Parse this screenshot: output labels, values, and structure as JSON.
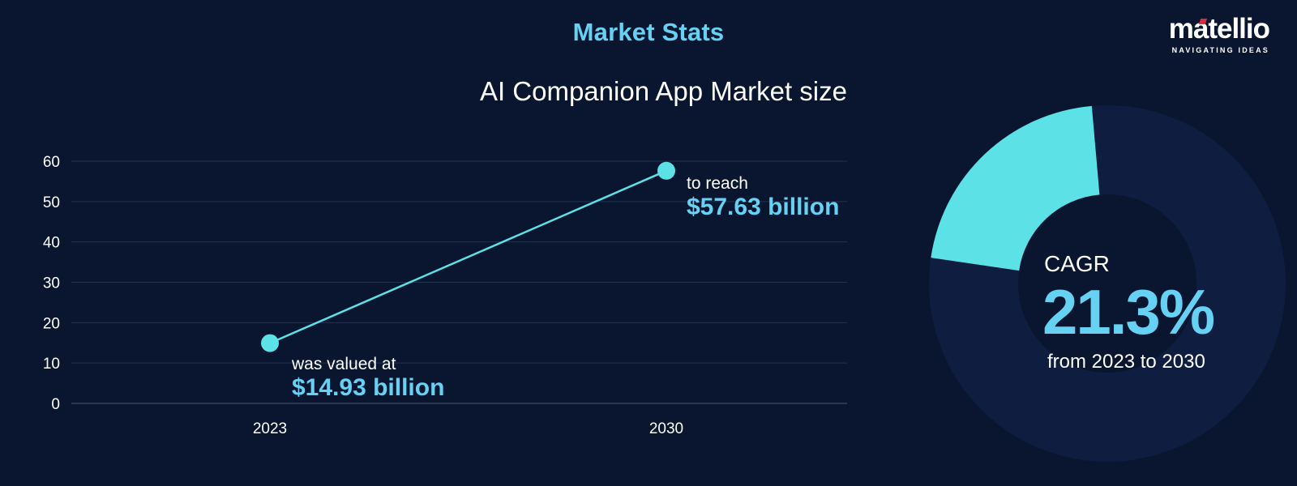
{
  "header": {
    "title": "Market Stats"
  },
  "logo": {
    "word": "matellio",
    "tagline": "NAVIGATING IDEAS"
  },
  "colors": {
    "background": "#0a1630",
    "accent": "#66d1f2",
    "line": "#5ce1e6",
    "donut_track": "#0e1d40",
    "grid": "#23324f"
  },
  "chart_data": {
    "type": "line",
    "title": "AI Companion App Market size",
    "xlabel": "",
    "ylabel": "",
    "x": [
      "2023",
      "2030"
    ],
    "values": [
      14.93,
      57.63
    ],
    "ylim": [
      0,
      60
    ],
    "yticks": [
      0,
      10,
      20,
      30,
      40,
      50,
      60
    ],
    "grid": true,
    "annotations": [
      {
        "small": "was valued at",
        "big": "$14.93 billion"
      },
      {
        "small": "to reach",
        "big": "$57.63 billion"
      }
    ]
  },
  "cagr": {
    "label": "CAGR",
    "value": "21.3%",
    "range": "from 2023 to 2030",
    "fraction": 0.213
  }
}
